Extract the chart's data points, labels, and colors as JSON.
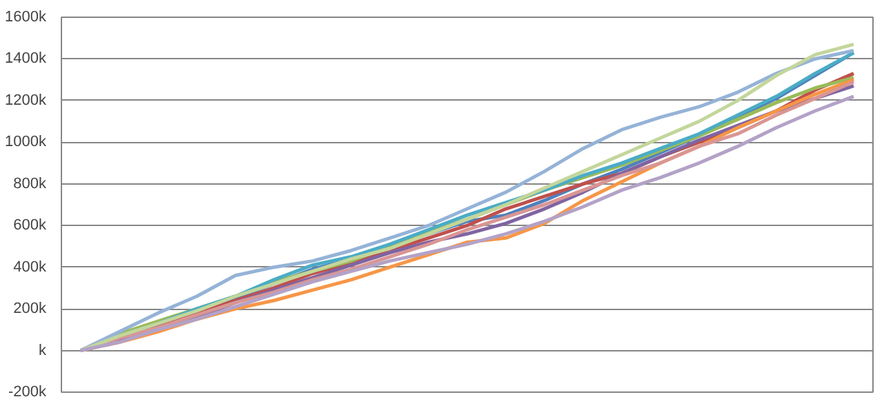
{
  "chart_data": {
    "type": "line",
    "categories": [
      null,
      null,
      null,
      null,
      null,
      null,
      null,
      null,
      null,
      null,
      null,
      null,
      null,
      null,
      null,
      null,
      null,
      null,
      null,
      null,
      null
    ],
    "ylim": [
      -200,
      1600
    ],
    "yticks": [
      {
        "value": -200,
        "label": "-200k"
      },
      {
        "value": 0,
        "label": "k"
      },
      {
        "value": 200,
        "label": "200k"
      },
      {
        "value": 400,
        "label": "400k"
      },
      {
        "value": 600,
        "label": "600k"
      },
      {
        "value": 800,
        "label": "800k"
      },
      {
        "value": 1000,
        "label": "1000k"
      },
      {
        "value": 1200,
        "label": "1200k"
      },
      {
        "value": 1400,
        "label": "1400k"
      },
      {
        "value": 1600,
        "label": "1600k"
      }
    ],
    "grid": "y",
    "marker": "none",
    "line_style": "solid",
    "series": [
      {
        "color": "#4f81bd",
        "values": [
          0,
          70,
          130,
          190,
          250,
          320,
          390,
          440,
          500,
          560,
          620,
          650,
          720,
          800,
          870,
          950,
          1030,
          1120,
          1210,
          1320,
          1430
        ]
      },
      {
        "color": "#c0504d",
        "values": [
          0,
          60,
          120,
          180,
          240,
          300,
          370,
          420,
          480,
          540,
          600,
          680,
          740,
          800,
          850,
          930,
          1000,
          1070,
          1150,
          1250,
          1330
        ]
      },
      {
        "color": "#9bbb59",
        "values": [
          0,
          80,
          140,
          200,
          260,
          330,
          380,
          430,
          500,
          570,
          630,
          700,
          770,
          830,
          890,
          960,
          1030,
          1110,
          1190,
          1260,
          1310
        ]
      },
      {
        "color": "#8064a2",
        "values": [
          0,
          50,
          110,
          160,
          230,
          290,
          350,
          410,
          470,
          520,
          560,
          610,
          680,
          760,
          850,
          930,
          1010,
          1080,
          1150,
          1210,
          1270
        ]
      },
      {
        "color": "#4bacc6",
        "values": [
          0,
          70,
          130,
          200,
          260,
          340,
          410,
          450,
          510,
          580,
          650,
          710,
          770,
          840,
          900,
          970,
          1040,
          1130,
          1220,
          1330,
          1430
        ]
      },
      {
        "color": "#f79646",
        "values": [
          0,
          40,
          90,
          150,
          200,
          240,
          290,
          340,
          400,
          460,
          520,
          540,
          610,
          720,
          810,
          900,
          980,
          1070,
          1150,
          1230,
          1300
        ]
      },
      {
        "color": "#95b3d7",
        "values": [
          0,
          90,
          180,
          260,
          360,
          400,
          430,
          480,
          540,
          600,
          680,
          760,
          860,
          970,
          1060,
          1120,
          1170,
          1240,
          1330,
          1400,
          1440
        ]
      },
      {
        "color": "#d99694",
        "values": [
          0,
          60,
          110,
          170,
          230,
          280,
          340,
          390,
          450,
          510,
          580,
          640,
          700,
          770,
          840,
          900,
          980,
          1040,
          1130,
          1210,
          1290
        ]
      },
      {
        "color": "#c3d69b",
        "values": [
          0,
          70,
          130,
          190,
          260,
          320,
          380,
          440,
          490,
          560,
          630,
          700,
          780,
          860,
          940,
          1020,
          1100,
          1200,
          1320,
          1420,
          1470
        ]
      },
      {
        "color": "#b3a2c7",
        "values": [
          0,
          40,
          100,
          150,
          210,
          270,
          330,
          380,
          430,
          470,
          510,
          560,
          620,
          690,
          770,
          830,
          900,
          980,
          1070,
          1150,
          1220
        ]
      }
    ]
  }
}
